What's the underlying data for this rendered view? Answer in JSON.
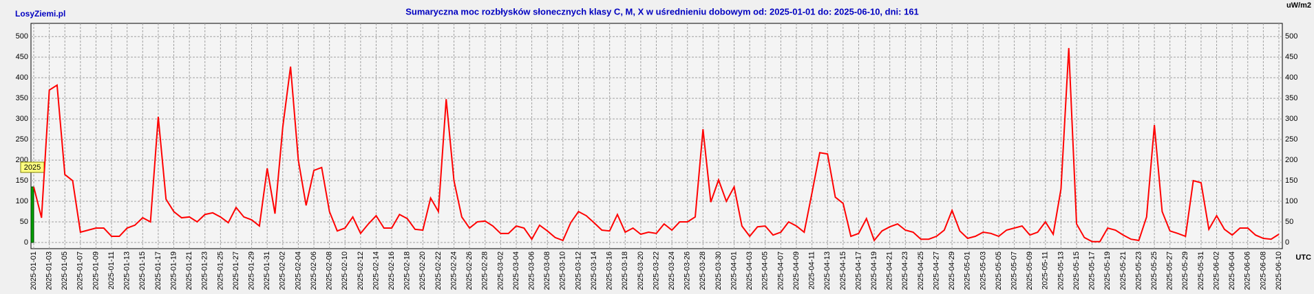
{
  "site": "LosyZiemi.pl",
  "chart_data": {
    "type": "line",
    "title": "Sumaryczna moc rozbłysków słonecznych klasy C, M, X w uśrednieniu dobowym od: 2025-01-01 do: 2025-06-10, dni: 161",
    "y_unit": "uW/m2",
    "x_unit": "UTC",
    "year_label": "2025",
    "color": "#ff0000",
    "grid": true,
    "ylim": [
      -15,
      532
    ],
    "yticks": [
      0,
      50,
      100,
      150,
      200,
      250,
      300,
      350,
      400,
      450,
      500
    ],
    "categories": [
      "2025-01-01",
      null,
      "2025-01-03",
      null,
      "2025-01-05",
      null,
      "2025-01-07",
      null,
      "2025-01-09",
      null,
      "2025-01-11",
      null,
      "2025-01-13",
      null,
      "2025-01-15",
      null,
      "2025-01-17",
      null,
      "2025-01-19",
      null,
      "2025-01-21",
      null,
      "2025-01-23",
      null,
      "2025-01-25",
      null,
      "2025-01-27",
      null,
      "2025-01-29",
      null,
      "2025-01-31",
      null,
      "2025-02-02",
      null,
      "2025-02-04",
      null,
      "2025-02-06",
      null,
      "2025-02-08",
      null,
      "2025-02-10",
      null,
      "2025-02-12",
      null,
      "2025-02-14",
      null,
      "2025-02-16",
      null,
      "2025-02-18",
      null,
      "2025-02-20",
      null,
      "2025-02-22",
      null,
      "2025-02-24",
      null,
      "2025-02-26",
      null,
      "2025-02-28",
      null,
      "2025-03-02",
      null,
      "2025-03-04",
      null,
      "2025-03-06",
      null,
      "2025-03-08",
      null,
      "2025-03-10",
      null,
      "2025-03-12",
      null,
      "2025-03-14",
      null,
      "2025-03-16",
      null,
      "2025-03-18",
      null,
      "2025-03-20",
      null,
      "2025-03-22",
      null,
      "2025-03-24",
      null,
      "2025-03-26",
      null,
      "2025-03-28",
      null,
      "2025-03-30",
      null,
      "2025-04-01",
      null,
      "2025-04-03",
      null,
      "2025-04-05",
      null,
      "2025-04-07",
      null,
      "2025-04-09",
      null,
      "2025-04-11",
      null,
      "2025-04-13",
      null,
      "2025-04-15",
      null,
      "2025-04-17",
      null,
      "2025-04-19",
      null,
      "2025-04-21",
      null,
      "2025-04-23",
      null,
      "2025-04-25",
      null,
      "2025-04-27",
      null,
      "2025-04-29",
      null,
      "2025-05-01",
      null,
      "2025-05-03",
      null,
      "2025-05-05",
      null,
      "2025-05-07",
      null,
      "2025-05-09",
      null,
      "2025-05-11",
      null,
      "2025-05-13",
      null,
      "2025-05-15",
      null,
      "2025-05-17",
      null,
      "2025-05-19",
      null,
      "2025-05-21",
      null,
      "2025-05-23",
      null,
      "2025-05-25",
      null,
      "2025-05-27",
      null,
      "2025-05-29",
      null,
      "2025-05-31",
      null,
      "2025-06-02",
      null,
      "2025-06-04",
      null,
      "2025-06-06",
      null,
      "2025-06-08",
      null,
      "2025-06-10"
    ],
    "values": [
      135,
      60,
      370,
      382,
      165,
      150,
      25,
      30,
      35,
      35,
      15,
      15,
      35,
      42,
      60,
      50,
      305,
      105,
      75,
      60,
      62,
      50,
      68,
      72,
      62,
      48,
      85,
      62,
      55,
      40,
      180,
      70,
      280,
      427,
      200,
      90,
      175,
      182,
      75,
      28,
      35,
      62,
      22,
      45,
      65,
      35,
      35,
      68,
      58,
      32,
      30,
      108,
      75,
      348,
      150,
      62,
      35,
      50,
      52,
      40,
      22,
      22,
      40,
      35,
      8,
      42,
      28,
      12,
      5,
      48,
      75,
      65,
      48,
      30,
      28,
      68,
      25,
      35,
      20,
      25,
      22,
      45,
      30,
      50,
      50,
      62,
      275,
      98,
      152,
      100,
      135,
      40,
      15,
      38,
      40,
      18,
      25,
      50,
      40,
      25,
      120,
      218,
      215,
      110,
      95,
      15,
      22,
      58,
      5,
      28,
      38,
      45,
      30,
      25,
      8,
      8,
      15,
      30,
      78,
      28,
      10,
      15,
      25,
      22,
      15,
      30,
      35,
      40,
      18,
      25,
      50,
      20,
      130,
      472,
      45,
      12,
      2,
      2,
      35,
      30,
      18,
      8,
      5,
      62,
      285,
      75,
      28,
      22,
      15,
      150,
      145,
      32,
      65,
      32,
      18,
      35,
      35,
      18,
      10,
      8,
      20
    ]
  }
}
